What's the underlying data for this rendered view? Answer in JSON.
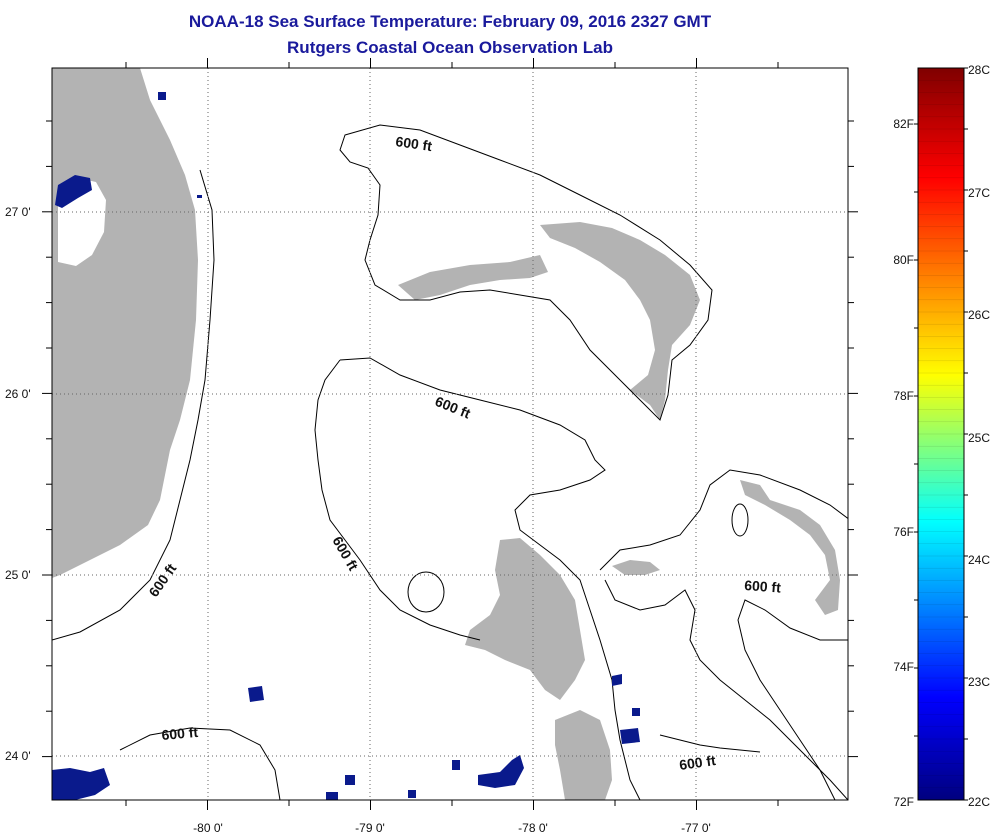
{
  "title": {
    "line1": "NOAA-18 Sea Surface Temperature:  February 09, 2016 2327 GMT",
    "line2": "Rutgers Coastal Ocean Observation Lab"
  },
  "map": {
    "longitude_labels": [
      "-80 0'",
      "-79 0'",
      "-78 0'",
      "-77 0'"
    ],
    "latitude_labels": [
      "27 0'",
      "26 0'",
      "25 0'",
      "24 0'"
    ],
    "contour_label": "600 ft",
    "land_color": "#b3b3b3",
    "cloud_color": "#ffffff",
    "cold_sst_color": "#0a1a8c"
  },
  "colorbar": {
    "celsius_labels": [
      "28C",
      "27C",
      "26C",
      "25C",
      "24C",
      "23C",
      "22C"
    ],
    "fahrenheit_labels": [
      "82F",
      "80F",
      "78F",
      "76F",
      "74F",
      "72F"
    ],
    "colors": [
      "#7f0000",
      "#ff0000",
      "#ffff00",
      "#00ffff",
      "#0000ff",
      "#00007f"
    ]
  }
}
